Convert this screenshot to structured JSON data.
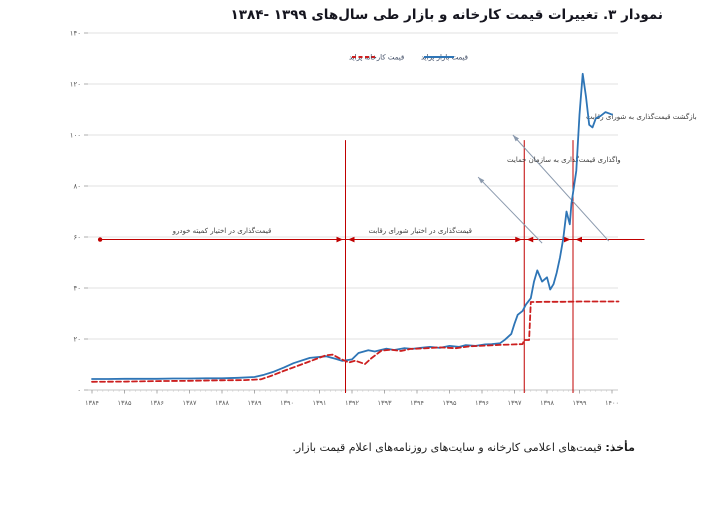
{
  "page": {
    "title": "نمودار ۳. تغییرات قیمت کارخانه و بازار طی سال‌های ۱۳۹۹ -۱۳۸۴",
    "source_label": "مأخذ:",
    "source_text": " قیمت‌های اعلامی کارخانه و سایت‌های روزنامه‌های اعلام قیمت بازار."
  },
  "colors": {
    "market_blue": "#2e75b6",
    "factory_red": "#cc1f1f",
    "policy_red": "#c00000",
    "annotation_gray": "#8a99ad",
    "gridline": "#e0e0e0",
    "axis_text": "#595959"
  },
  "chart_data": {
    "type": "line",
    "title": "نمودار ۳. تغییرات قیمت کارخانه و بازار طی سال‌های ۱۳۹۹ -۱۳۸۴",
    "xlabel": "",
    "ylabel": "",
    "grid": "horizontal",
    "legend_position": "top-center-inside",
    "legend": [
      {
        "label": "قیمت کارخانه پراید",
        "color": "#cc1f1f",
        "style": "dashed"
      },
      {
        "label": "قیمت بازار پراید",
        "color": "#2e75b6",
        "style": "solid"
      }
    ],
    "x_ticks": {
      "values": [
        1384,
        1385,
        1386,
        1387,
        1388,
        1389,
        1390,
        1391,
        1392,
        1393,
        1394,
        1395,
        1396,
        1397,
        1398,
        1399,
        1400
      ],
      "labels": [
        "۱۳۸۴",
        "۱۳۸۵",
        "۱۳۸۶",
        "۱۳۸۷",
        "۱۳۸۸",
        "۱۳۸۹",
        "۱۳۹۰",
        "۱۳۹۱",
        "۱۳۹۲",
        "۱۳۹۳",
        "۱۳۹۴",
        "۱۳۹۵",
        "۱۳۹۶",
        "۱۳۹۷",
        "۱۳۹۸",
        "۱۳۹۹",
        "۱۴۰۰"
      ]
    },
    "y_ticks": {
      "values": [
        0,
        20,
        40,
        60,
        80,
        100,
        120,
        140
      ],
      "labels": [
        "۰",
        "۲۰",
        "۴۰",
        "۶۰",
        "۸۰",
        "۱۰۰",
        "۱۲۰",
        "۱۴۰"
      ]
    },
    "xlim": [
      1384,
      1400
    ],
    "ylim": [
      0,
      140
    ],
    "series": [
      {
        "key": "market-price",
        "name": "قیمت بازار پراید",
        "color": "#2e75b6",
        "style": "solid",
        "points": [
          [
            1384,
            4.3
          ],
          [
            1384.5,
            4.3
          ],
          [
            1385,
            4.4
          ],
          [
            1385.5,
            4.4
          ],
          [
            1386,
            4.4
          ],
          [
            1386.5,
            4.5
          ],
          [
            1387,
            4.5
          ],
          [
            1387.5,
            4.6
          ],
          [
            1388,
            4.6
          ],
          [
            1388.5,
            4.8
          ],
          [
            1389,
            5.1
          ],
          [
            1389.3,
            6
          ],
          [
            1389.6,
            7.2
          ],
          [
            1389.9,
            8.8
          ],
          [
            1390.2,
            10.5
          ],
          [
            1390.7,
            12.6
          ],
          [
            1391.2,
            13.2
          ],
          [
            1391.5,
            12.2
          ],
          [
            1391.7,
            11.4
          ],
          [
            1392,
            12
          ],
          [
            1392.2,
            14.5
          ],
          [
            1392.5,
            15.6
          ],
          [
            1392.7,
            15.1
          ],
          [
            1393.05,
            16.2
          ],
          [
            1393.3,
            15.7
          ],
          [
            1393.6,
            16.4
          ],
          [
            1393.85,
            16.1
          ],
          [
            1394.1,
            16.5
          ],
          [
            1394.4,
            16.9
          ],
          [
            1394.7,
            16.5
          ],
          [
            1395,
            17.3
          ],
          [
            1395.3,
            16.9
          ],
          [
            1395.5,
            17.6
          ],
          [
            1395.8,
            17.3
          ],
          [
            1396.1,
            17.9
          ],
          [
            1396.3,
            18
          ],
          [
            1396.55,
            18.3
          ],
          [
            1396.7,
            19.7
          ],
          [
            1396.9,
            22
          ],
          [
            1397,
            26
          ],
          [
            1397.1,
            29.5
          ],
          [
            1397.25,
            31
          ],
          [
            1397.35,
            33.5
          ],
          [
            1397.5,
            36
          ],
          [
            1397.6,
            42.5
          ],
          [
            1397.7,
            46.9
          ],
          [
            1397.85,
            42.5
          ],
          [
            1398,
            44.2
          ],
          [
            1398.1,
            39.4
          ],
          [
            1398.2,
            41.5
          ],
          [
            1398.3,
            46
          ],
          [
            1398.4,
            52
          ],
          [
            1398.5,
            59.5
          ],
          [
            1398.6,
            70
          ],
          [
            1398.7,
            65
          ],
          [
            1398.75,
            73
          ],
          [
            1398.9,
            86
          ],
          [
            1399,
            108
          ],
          [
            1399.1,
            124
          ],
          [
            1399.2,
            115
          ],
          [
            1399.3,
            104
          ],
          [
            1399.4,
            103
          ],
          [
            1399.5,
            106.5
          ],
          [
            1399.65,
            107.5
          ],
          [
            1399.8,
            109
          ],
          [
            1399.9,
            108.5
          ],
          [
            1400,
            108
          ]
        ]
      },
      {
        "key": "factory-price",
        "name": "قیمت کارخانه پراید",
        "color": "#cc1f1f",
        "style": "dashed",
        "points": [
          [
            1384,
            3.2
          ],
          [
            1385,
            3.3
          ],
          [
            1386,
            3.5
          ],
          [
            1387,
            3.6
          ],
          [
            1388,
            3.8
          ],
          [
            1388.7,
            3.9
          ],
          [
            1389.2,
            4.2
          ],
          [
            1389.5,
            5.5
          ],
          [
            1389.9,
            7.5
          ],
          [
            1390.4,
            9.8
          ],
          [
            1390.9,
            12.2
          ],
          [
            1391.2,
            13.6
          ],
          [
            1391.4,
            13.9
          ],
          [
            1391.6,
            12.5
          ],
          [
            1391.9,
            10.8
          ],
          [
            1392.1,
            11.5
          ],
          [
            1392.4,
            10.2
          ],
          [
            1392.6,
            12.5
          ],
          [
            1392.9,
            15.4
          ],
          [
            1393.2,
            15.8
          ],
          [
            1393.5,
            15.3
          ],
          [
            1393.8,
            16.1
          ],
          [
            1394.2,
            16.3
          ],
          [
            1394.7,
            16.7
          ],
          [
            1395.2,
            16.4
          ],
          [
            1395.6,
            17.1
          ],
          [
            1396.1,
            17.4
          ],
          [
            1396.55,
            17.7
          ],
          [
            1397,
            17.9
          ],
          [
            1397.25,
            18
          ],
          [
            1397.3,
            19.6
          ],
          [
            1397.45,
            19.6
          ],
          [
            1397.5,
            34.5
          ],
          [
            1398,
            34.6
          ],
          [
            1398.5,
            34.6
          ],
          [
            1399,
            34.7
          ],
          [
            1399.5,
            34.7
          ],
          [
            1400.2,
            34.7
          ]
        ]
      }
    ],
    "event_lines": {
      "color": "#c00000",
      "years": [
        1391.8,
        1397.3,
        1398.8
      ],
      "top_value": 98
    },
    "policy_line": {
      "value": 59,
      "color": "#c00000",
      "start_year": 1384.25,
      "end_year": 1401,
      "labels": [
        {
          "text": "قیمت‌گذاری در اختیار کمیته خودرو",
          "center_year": 1388.0
        },
        {
          "text": "قیمت‌گذاری در اختیار شورای رقابت",
          "center_year": 1394.1
        }
      ]
    },
    "annotations": [
      {
        "text": "بازگشت قیمت‌گذاری به شورای رقابت",
        "text_end_year": 1399.2,
        "text_value": 106.3,
        "arrow": {
          "from": [
            1399.9,
            58.4
          ],
          "to": [
            1396.95,
            100
          ]
        }
      },
      {
        "text": "واگذاری قیمت‌گذاری به سازمان حمایت",
        "text_end_year": 1396.77,
        "text_value": 89.4,
        "arrow": {
          "from": [
            1397.85,
            57.6
          ],
          "to": [
            1395.88,
            83.5
          ]
        }
      }
    ]
  }
}
